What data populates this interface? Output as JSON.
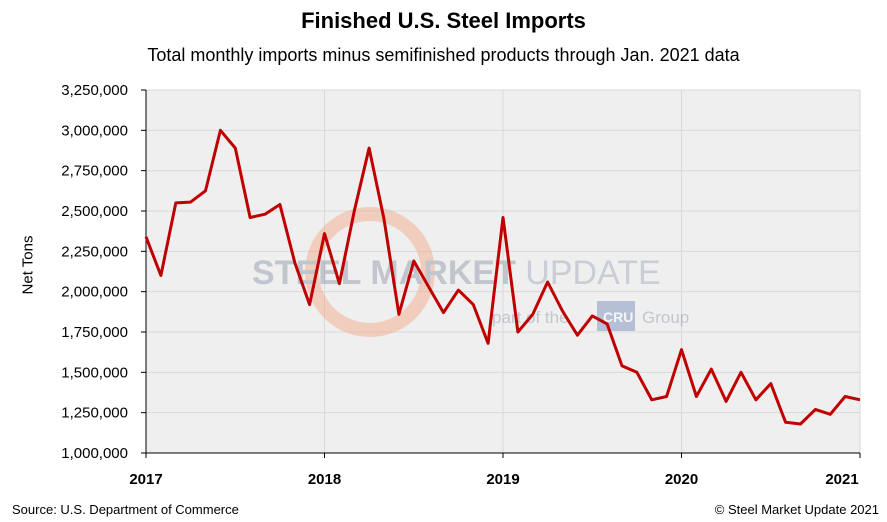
{
  "chart_data": {
    "type": "line",
    "title": "Finished U.S. Steel Imports",
    "subtitle": "Total monthly imports minus semifinished products through Jan. 2021 data",
    "xlabel": "",
    "ylabel": "Net Tons",
    "ylim": [
      1000000,
      3250000
    ],
    "xlim": [
      "2017-01",
      "2021-01"
    ],
    "x_tick_labels": [
      "2017",
      "2018",
      "2019",
      "2020",
      "2021"
    ],
    "y_tick_labels": [
      "1,000,000",
      "1,250,000",
      "1,500,000",
      "1,750,000",
      "2,000,000",
      "2,250,000",
      "2,500,000",
      "2,750,000",
      "3,000,000",
      "3,250,000"
    ],
    "y_tick_values": [
      1000000,
      1250000,
      1500000,
      1750000,
      2000000,
      2250000,
      2500000,
      2750000,
      3000000,
      3250000
    ],
    "grid": true,
    "line_color": "#c00000",
    "series": [
      {
        "x": [
          "2017-01",
          "2017-02",
          "2017-03",
          "2017-04",
          "2017-05",
          "2017-06",
          "2017-07",
          "2017-08",
          "2017-09",
          "2017-10",
          "2017-11",
          "2017-12",
          "2018-01",
          "2018-02",
          "2018-03",
          "2018-04",
          "2018-05",
          "2018-06",
          "2018-07",
          "2018-08",
          "2018-09",
          "2018-10",
          "2018-11",
          "2018-12",
          "2019-01",
          "2019-02",
          "2019-03",
          "2019-04",
          "2019-05",
          "2019-06",
          "2019-07",
          "2019-08",
          "2019-09",
          "2019-10",
          "2019-11",
          "2019-12",
          "2020-01",
          "2020-02",
          "2020-03",
          "2020-04",
          "2020-05",
          "2020-06",
          "2020-07",
          "2020-08",
          "2020-09",
          "2020-10",
          "2020-11",
          "2020-12",
          "2021-01"
        ],
        "values": [
          2340000,
          2100000,
          2550000,
          2555000,
          2625000,
          3000000,
          2890000,
          2460000,
          2480000,
          2540000,
          2180000,
          1920000,
          2360000,
          2050000,
          2500000,
          2890000,
          2450000,
          1860000,
          2190000,
          2030000,
          1870000,
          2010000,
          1920000,
          1680000,
          2460000,
          1750000,
          1860000,
          2060000,
          1880000,
          1730000,
          1850000,
          1800000,
          1540000,
          1500000,
          1330000,
          1350000,
          1640000,
          1350000,
          1520000,
          1320000,
          1500000,
          1330000,
          1430000,
          1190000,
          1180000,
          1270000,
          1240000,
          1350000,
          1330000
        ]
      }
    ]
  },
  "watermark": {
    "brand_text": "STEEL MARKET UPDATE",
    "brand_bold": "STEEL MARKET",
    "brand_light": "UPDATE",
    "tagline_prefix": "part of the",
    "tagline_badge": "CRU",
    "tagline_suffix": "Group"
  },
  "footer": {
    "source": "Source: U.S. Department of Commerce",
    "copyright": "© Steel Market Update 2021"
  }
}
